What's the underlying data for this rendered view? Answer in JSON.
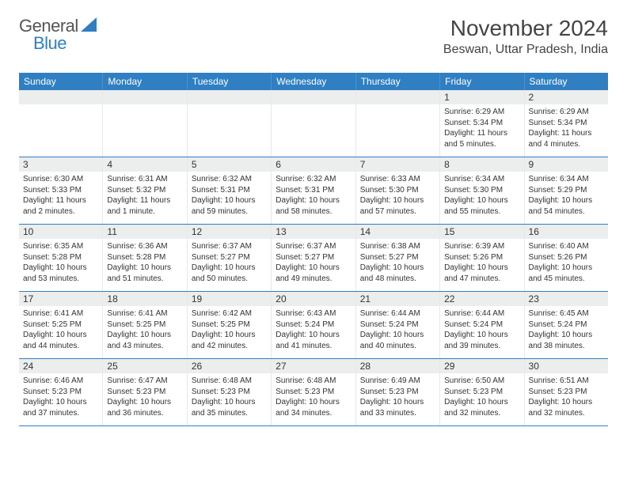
{
  "logo": {
    "general": "General",
    "blue": "Blue"
  },
  "title": "November 2024",
  "location": "Beswan, Uttar Pradesh, India",
  "colors": {
    "brand_blue": "#2f7fc2",
    "logo_gray": "#555555",
    "date_bg": "#eceded",
    "text": "#333333",
    "background": "#ffffff"
  },
  "weekdays": [
    "Sunday",
    "Monday",
    "Tuesday",
    "Wednesday",
    "Thursday",
    "Friday",
    "Saturday"
  ],
  "weeks": [
    [
      {
        "date": "",
        "sunrise": "",
        "sunset": "",
        "daylight": ""
      },
      {
        "date": "",
        "sunrise": "",
        "sunset": "",
        "daylight": ""
      },
      {
        "date": "",
        "sunrise": "",
        "sunset": "",
        "daylight": ""
      },
      {
        "date": "",
        "sunrise": "",
        "sunset": "",
        "daylight": ""
      },
      {
        "date": "",
        "sunrise": "",
        "sunset": "",
        "daylight": ""
      },
      {
        "date": "1",
        "sunrise": "Sunrise: 6:29 AM",
        "sunset": "Sunset: 5:34 PM",
        "daylight": "Daylight: 11 hours and 5 minutes."
      },
      {
        "date": "2",
        "sunrise": "Sunrise: 6:29 AM",
        "sunset": "Sunset: 5:34 PM",
        "daylight": "Daylight: 11 hours and 4 minutes."
      }
    ],
    [
      {
        "date": "3",
        "sunrise": "Sunrise: 6:30 AM",
        "sunset": "Sunset: 5:33 PM",
        "daylight": "Daylight: 11 hours and 2 minutes."
      },
      {
        "date": "4",
        "sunrise": "Sunrise: 6:31 AM",
        "sunset": "Sunset: 5:32 PM",
        "daylight": "Daylight: 11 hours and 1 minute."
      },
      {
        "date": "5",
        "sunrise": "Sunrise: 6:32 AM",
        "sunset": "Sunset: 5:31 PM",
        "daylight": "Daylight: 10 hours and 59 minutes."
      },
      {
        "date": "6",
        "sunrise": "Sunrise: 6:32 AM",
        "sunset": "Sunset: 5:31 PM",
        "daylight": "Daylight: 10 hours and 58 minutes."
      },
      {
        "date": "7",
        "sunrise": "Sunrise: 6:33 AM",
        "sunset": "Sunset: 5:30 PM",
        "daylight": "Daylight: 10 hours and 57 minutes."
      },
      {
        "date": "8",
        "sunrise": "Sunrise: 6:34 AM",
        "sunset": "Sunset: 5:30 PM",
        "daylight": "Daylight: 10 hours and 55 minutes."
      },
      {
        "date": "9",
        "sunrise": "Sunrise: 6:34 AM",
        "sunset": "Sunset: 5:29 PM",
        "daylight": "Daylight: 10 hours and 54 minutes."
      }
    ],
    [
      {
        "date": "10",
        "sunrise": "Sunrise: 6:35 AM",
        "sunset": "Sunset: 5:28 PM",
        "daylight": "Daylight: 10 hours and 53 minutes."
      },
      {
        "date": "11",
        "sunrise": "Sunrise: 6:36 AM",
        "sunset": "Sunset: 5:28 PM",
        "daylight": "Daylight: 10 hours and 51 minutes."
      },
      {
        "date": "12",
        "sunrise": "Sunrise: 6:37 AM",
        "sunset": "Sunset: 5:27 PM",
        "daylight": "Daylight: 10 hours and 50 minutes."
      },
      {
        "date": "13",
        "sunrise": "Sunrise: 6:37 AM",
        "sunset": "Sunset: 5:27 PM",
        "daylight": "Daylight: 10 hours and 49 minutes."
      },
      {
        "date": "14",
        "sunrise": "Sunrise: 6:38 AM",
        "sunset": "Sunset: 5:27 PM",
        "daylight": "Daylight: 10 hours and 48 minutes."
      },
      {
        "date": "15",
        "sunrise": "Sunrise: 6:39 AM",
        "sunset": "Sunset: 5:26 PM",
        "daylight": "Daylight: 10 hours and 47 minutes."
      },
      {
        "date": "16",
        "sunrise": "Sunrise: 6:40 AM",
        "sunset": "Sunset: 5:26 PM",
        "daylight": "Daylight: 10 hours and 45 minutes."
      }
    ],
    [
      {
        "date": "17",
        "sunrise": "Sunrise: 6:41 AM",
        "sunset": "Sunset: 5:25 PM",
        "daylight": "Daylight: 10 hours and 44 minutes."
      },
      {
        "date": "18",
        "sunrise": "Sunrise: 6:41 AM",
        "sunset": "Sunset: 5:25 PM",
        "daylight": "Daylight: 10 hours and 43 minutes."
      },
      {
        "date": "19",
        "sunrise": "Sunrise: 6:42 AM",
        "sunset": "Sunset: 5:25 PM",
        "daylight": "Daylight: 10 hours and 42 minutes."
      },
      {
        "date": "20",
        "sunrise": "Sunrise: 6:43 AM",
        "sunset": "Sunset: 5:24 PM",
        "daylight": "Daylight: 10 hours and 41 minutes."
      },
      {
        "date": "21",
        "sunrise": "Sunrise: 6:44 AM",
        "sunset": "Sunset: 5:24 PM",
        "daylight": "Daylight: 10 hours and 40 minutes."
      },
      {
        "date": "22",
        "sunrise": "Sunrise: 6:44 AM",
        "sunset": "Sunset: 5:24 PM",
        "daylight": "Daylight: 10 hours and 39 minutes."
      },
      {
        "date": "23",
        "sunrise": "Sunrise: 6:45 AM",
        "sunset": "Sunset: 5:24 PM",
        "daylight": "Daylight: 10 hours and 38 minutes."
      }
    ],
    [
      {
        "date": "24",
        "sunrise": "Sunrise: 6:46 AM",
        "sunset": "Sunset: 5:23 PM",
        "daylight": "Daylight: 10 hours and 37 minutes."
      },
      {
        "date": "25",
        "sunrise": "Sunrise: 6:47 AM",
        "sunset": "Sunset: 5:23 PM",
        "daylight": "Daylight: 10 hours and 36 minutes."
      },
      {
        "date": "26",
        "sunrise": "Sunrise: 6:48 AM",
        "sunset": "Sunset: 5:23 PM",
        "daylight": "Daylight: 10 hours and 35 minutes."
      },
      {
        "date": "27",
        "sunrise": "Sunrise: 6:48 AM",
        "sunset": "Sunset: 5:23 PM",
        "daylight": "Daylight: 10 hours and 34 minutes."
      },
      {
        "date": "28",
        "sunrise": "Sunrise: 6:49 AM",
        "sunset": "Sunset: 5:23 PM",
        "daylight": "Daylight: 10 hours and 33 minutes."
      },
      {
        "date": "29",
        "sunrise": "Sunrise: 6:50 AM",
        "sunset": "Sunset: 5:23 PM",
        "daylight": "Daylight: 10 hours and 32 minutes."
      },
      {
        "date": "30",
        "sunrise": "Sunrise: 6:51 AM",
        "sunset": "Sunset: 5:23 PM",
        "daylight": "Daylight: 10 hours and 32 minutes."
      }
    ]
  ]
}
